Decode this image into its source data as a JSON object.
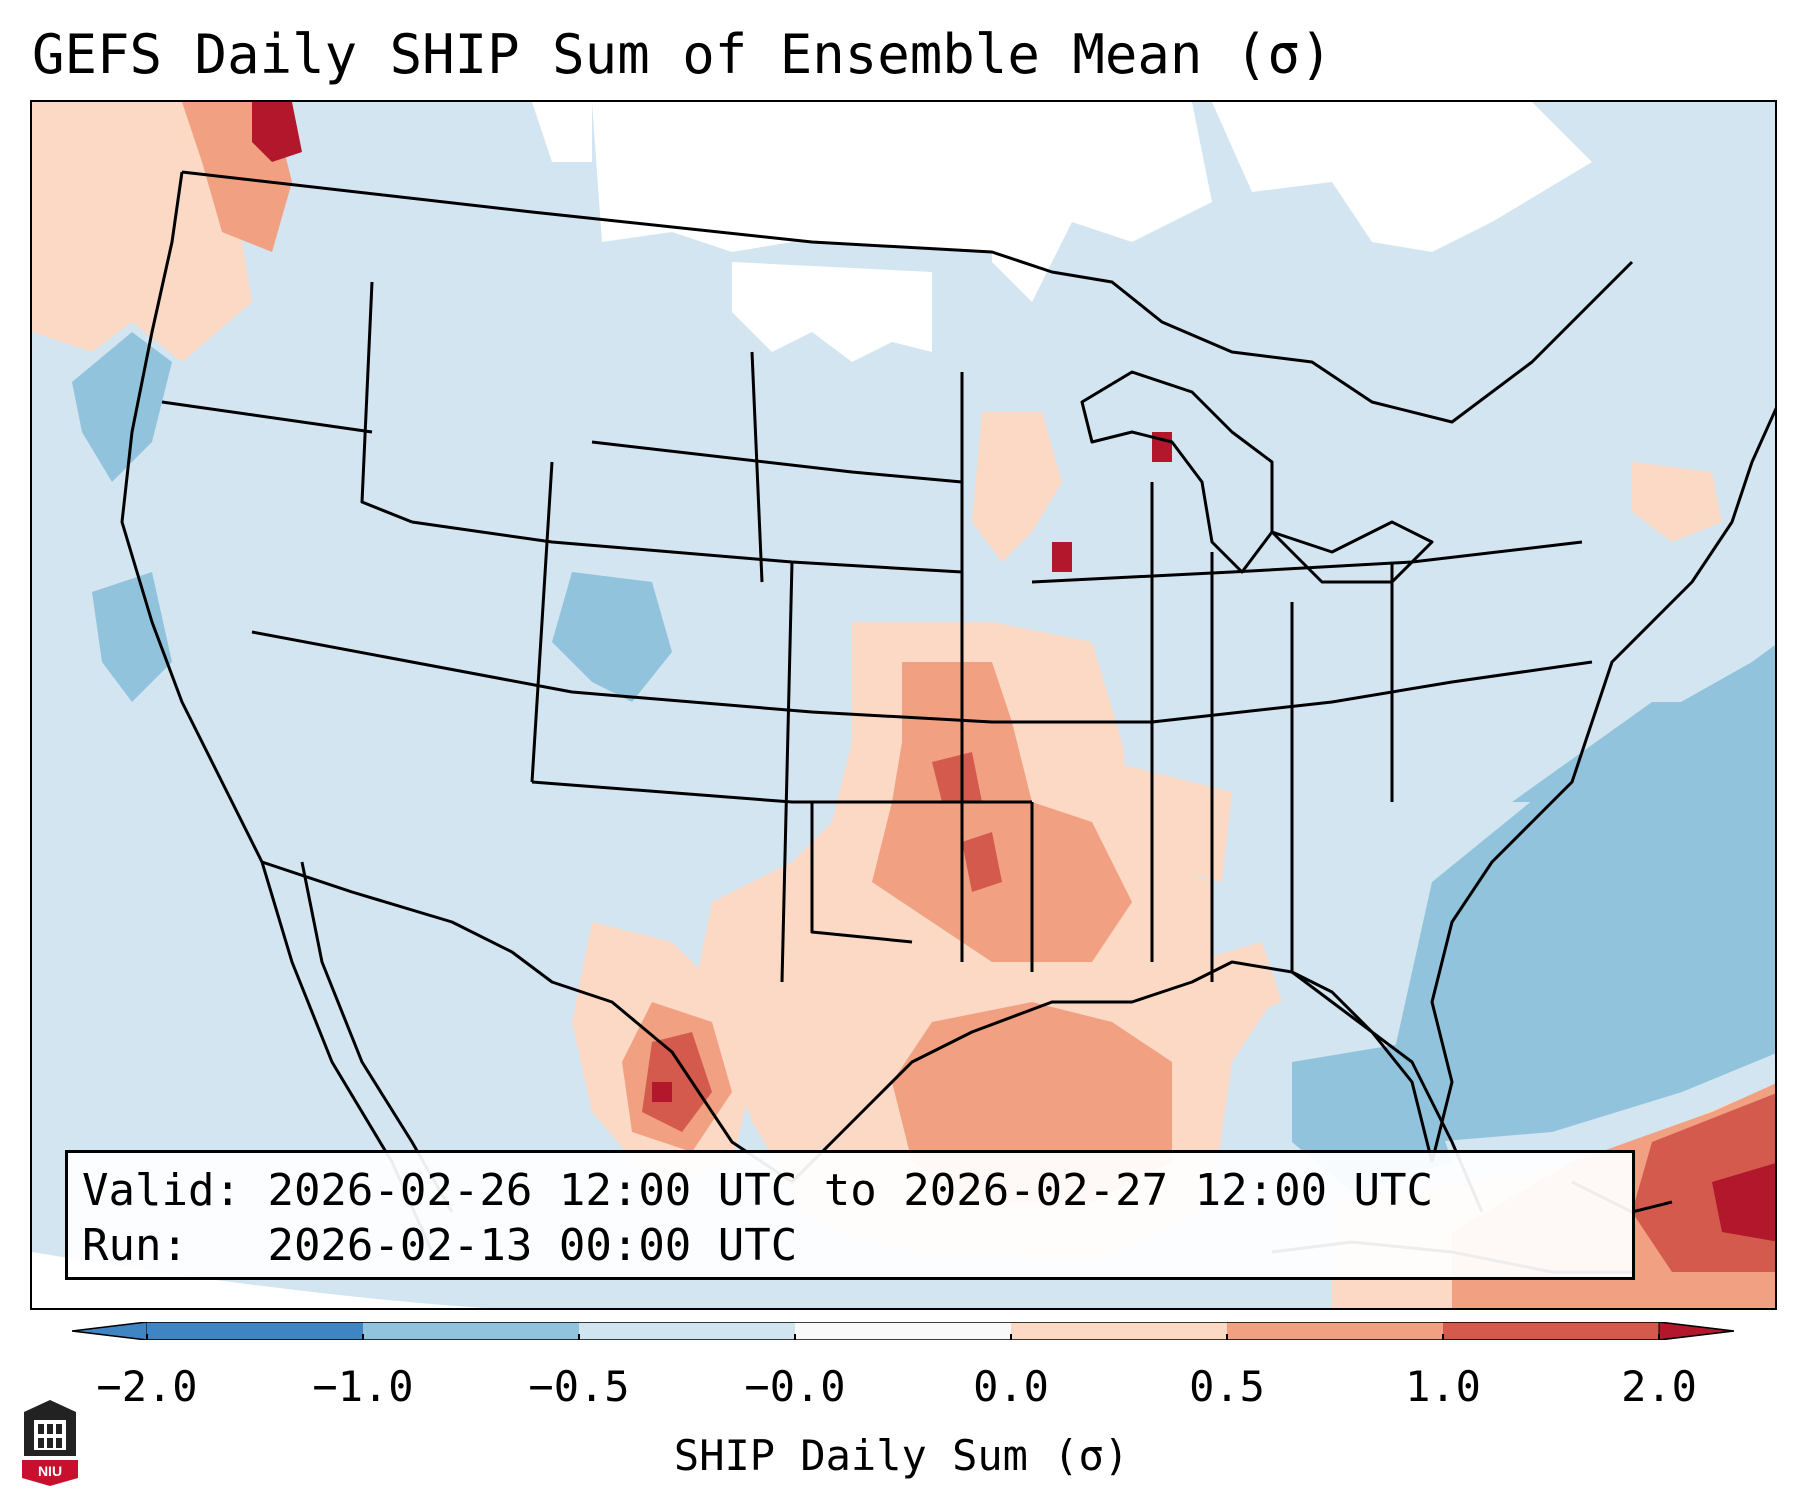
{
  "title": "GEFS Daily SHIP Sum of Ensemble Mean (σ)",
  "info": {
    "valid_label": "Valid:",
    "valid_value": "2026-02-26 12:00 UTC to 2026-02-27 12:00 UTC",
    "run_label": "Run:",
    "run_value": "2026-02-13 00:00 UTC"
  },
  "colorbar": {
    "label": "SHIP Daily Sum (σ)",
    "ticks": [
      "−2.0",
      "−1.0",
      "−0.5",
      "−0.0",
      "0.0",
      "0.5",
      "1.0",
      "2.0"
    ],
    "colors": [
      "#3f85c3",
      "#92c3dc",
      "#d0e5ef",
      "#f9f9f9",
      "#fbd9c5",
      "#f1a182",
      "#d45a4d",
      "#b2172b"
    ],
    "extend": "both"
  },
  "logo": {
    "text": "NIU"
  },
  "map": {
    "region": "Contiguous United States and surrounding areas",
    "field_colors": {
      "background_field": "#d2e5f1",
      "no_data": "#ffffff",
      "light_warm": "#fbd9c5",
      "medium_warm": "#f1a182",
      "strong_warm": "#d45a4d",
      "extreme_warm": "#b2172b",
      "medium_cool": "#92c3dc"
    }
  }
}
